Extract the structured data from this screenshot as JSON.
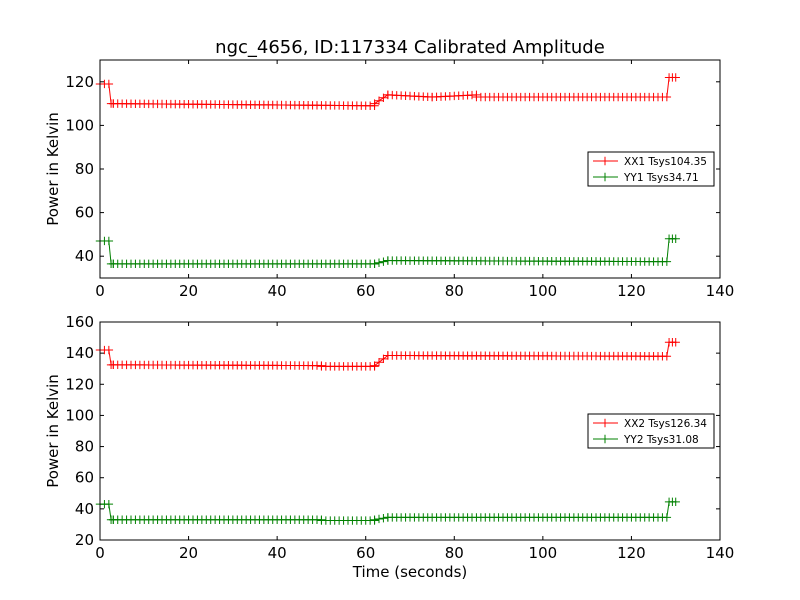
{
  "figure": {
    "title": "ngc_4656, ID:117334 Calibrated Amplitude",
    "xlabel": "Time (seconds)"
  },
  "colors": {
    "xx": "#ff0000",
    "yy": "#008000",
    "axes": "#000000",
    "background": "#ffffff"
  },
  "chart_data": [
    {
      "type": "line",
      "title": "ngc_4656, ID:117334 Calibrated Amplitude",
      "xlabel": "",
      "ylabel": "Power in Kelvin",
      "xlim": [
        0,
        140
      ],
      "ylim": [
        30,
        130
      ],
      "xticks": [
        0,
        20,
        40,
        60,
        80,
        100,
        120,
        140
      ],
      "yticks": [
        40,
        60,
        80,
        100,
        120
      ],
      "grid": false,
      "legend": "center-right",
      "marker": "+",
      "series": [
        {
          "name": "XX1 Tsys104.35",
          "color": "#ff0000",
          "segments": [
            {
              "x": [
                0,
                2
              ],
              "y": [
                119,
                119
              ]
            },
            {
              "x": [
                2.5,
                3
              ],
              "y": [
                110,
                110
              ]
            },
            {
              "x": [
                3,
                62
              ],
              "y": [
                110,
                109
              ]
            },
            {
              "x": [
                62,
                65
              ],
              "y": [
                110,
                114
              ]
            },
            {
              "x": [
                65,
                75
              ],
              "y": [
                114,
                113
              ]
            },
            {
              "x": [
                75,
                85
              ],
              "y": [
                113,
                114
              ]
            },
            {
              "x": [
                85,
                128
              ],
              "y": [
                113,
                113
              ]
            },
            {
              "x": [
                128.5,
                130
              ],
              "y": [
                122,
                122
              ]
            }
          ]
        },
        {
          "name": "YY1 Tsys34.71",
          "color": "#008000",
          "segments": [
            {
              "x": [
                0,
                2
              ],
              "y": [
                47,
                47
              ]
            },
            {
              "x": [
                2.5,
                3
              ],
              "y": [
                36.5,
                36.5
              ]
            },
            {
              "x": [
                3,
                62
              ],
              "y": [
                36.5,
                36.5
              ]
            },
            {
              "x": [
                62,
                65
              ],
              "y": [
                36.5,
                38
              ]
            },
            {
              "x": [
                65,
                128
              ],
              "y": [
                38,
                37.5
              ]
            },
            {
              "x": [
                128.5,
                130
              ],
              "y": [
                48,
                48
              ]
            }
          ]
        }
      ]
    },
    {
      "type": "line",
      "title": "",
      "xlabel": "Time (seconds)",
      "ylabel": "Power in Kelvin",
      "xlim": [
        0,
        140
      ],
      "ylim": [
        20,
        160
      ],
      "xticks": [
        0,
        20,
        40,
        60,
        80,
        100,
        120,
        140
      ],
      "yticks": [
        20,
        40,
        60,
        80,
        100,
        120,
        140,
        160
      ],
      "grid": false,
      "legend": "center-right",
      "marker": "+",
      "series": [
        {
          "name": "XX2 Tsys126.34",
          "color": "#ff0000",
          "segments": [
            {
              "x": [
                0,
                2
              ],
              "y": [
                142,
                142
              ]
            },
            {
              "x": [
                2.5,
                3
              ],
              "y": [
                132.5,
                132.5
              ]
            },
            {
              "x": [
                3,
                50
              ],
              "y": [
                132.5,
                132
              ]
            },
            {
              "x": [
                50,
                62
              ],
              "y": [
                131.5,
                131.5
              ]
            },
            {
              "x": [
                62,
                65
              ],
              "y": [
                132,
                138.5
              ]
            },
            {
              "x": [
                65,
                128
              ],
              "y": [
                138.5,
                138
              ]
            },
            {
              "x": [
                128.5,
                130
              ],
              "y": [
                147,
                147
              ]
            }
          ]
        },
        {
          "name": "YY2 Tsys31.08",
          "color": "#008000",
          "segments": [
            {
              "x": [
                0,
                2
              ],
              "y": [
                43,
                43
              ]
            },
            {
              "x": [
                2.5,
                3
              ],
              "y": [
                33,
                33
              ]
            },
            {
              "x": [
                3,
                50
              ],
              "y": [
                33,
                33
              ]
            },
            {
              "x": [
                50,
                62
              ],
              "y": [
                32.5,
                32.5
              ]
            },
            {
              "x": [
                62,
                65
              ],
              "y": [
                33,
                34.5
              ]
            },
            {
              "x": [
                65,
                128
              ],
              "y": [
                34.5,
                34.5
              ]
            },
            {
              "x": [
                128.5,
                130
              ],
              "y": [
                44.5,
                44.5
              ]
            }
          ]
        }
      ]
    }
  ]
}
